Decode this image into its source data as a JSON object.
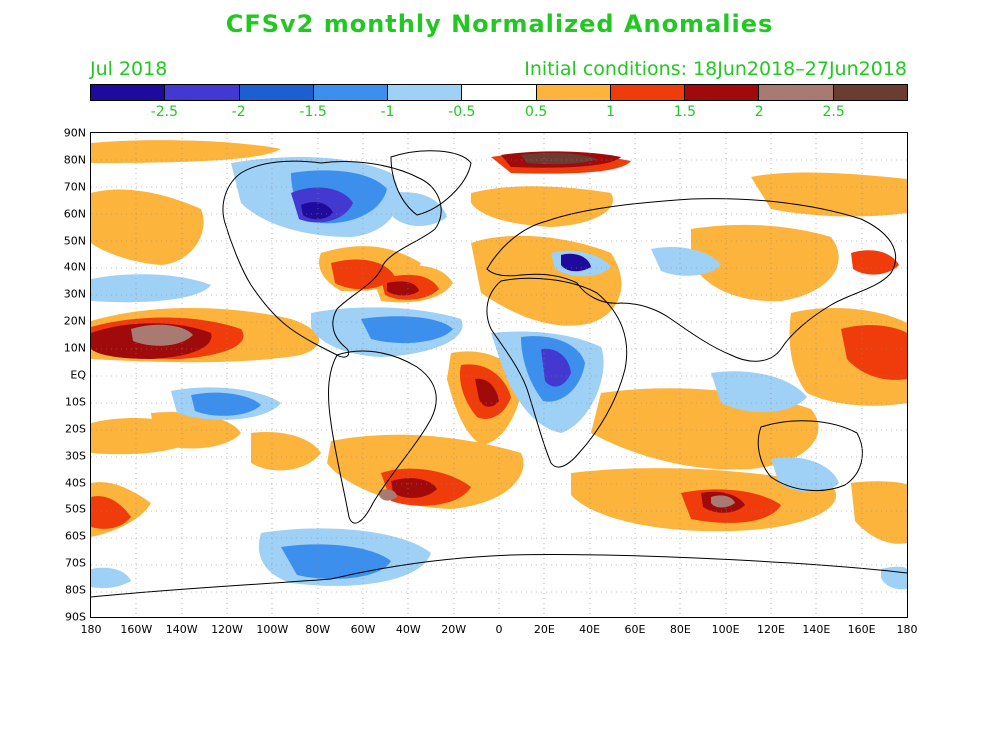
{
  "title": "CFSv2 monthly Normalized Anomalies",
  "valid_month": "Jul 2018",
  "initial_conditions": "Initial conditions: 18Jun2018–27Jun2018",
  "colorbar": {
    "colors": [
      "#1e0a9c",
      "#4338d0",
      "#1c5fd0",
      "#3d8fee",
      "#9fd0f6",
      "#ffffff",
      "#fcb43c",
      "#f03c0a",
      "#a00a0a",
      "#a87a72",
      "#6a3c32"
    ],
    "labels": [
      "-2.5",
      "-2",
      "-1.5",
      "-1",
      "-0.5",
      "0.5",
      "1",
      "1.5",
      "2",
      "2.5"
    ]
  },
  "latitude_labels": [
    "90N",
    "80N",
    "70N",
    "60N",
    "50N",
    "40N",
    "30N",
    "20N",
    "10N",
    "EQ",
    "10S",
    "20S",
    "30S",
    "40S",
    "50S",
    "60S",
    "70S",
    "80S",
    "90S"
  ],
  "longitude_labels": [
    "180",
    "160W",
    "140W",
    "120W",
    "100W",
    "80W",
    "60W",
    "40W",
    "20W",
    "0",
    "20E",
    "40E",
    "60E",
    "80E",
    "100E",
    "120E",
    "140E",
    "160E",
    "180"
  ]
}
